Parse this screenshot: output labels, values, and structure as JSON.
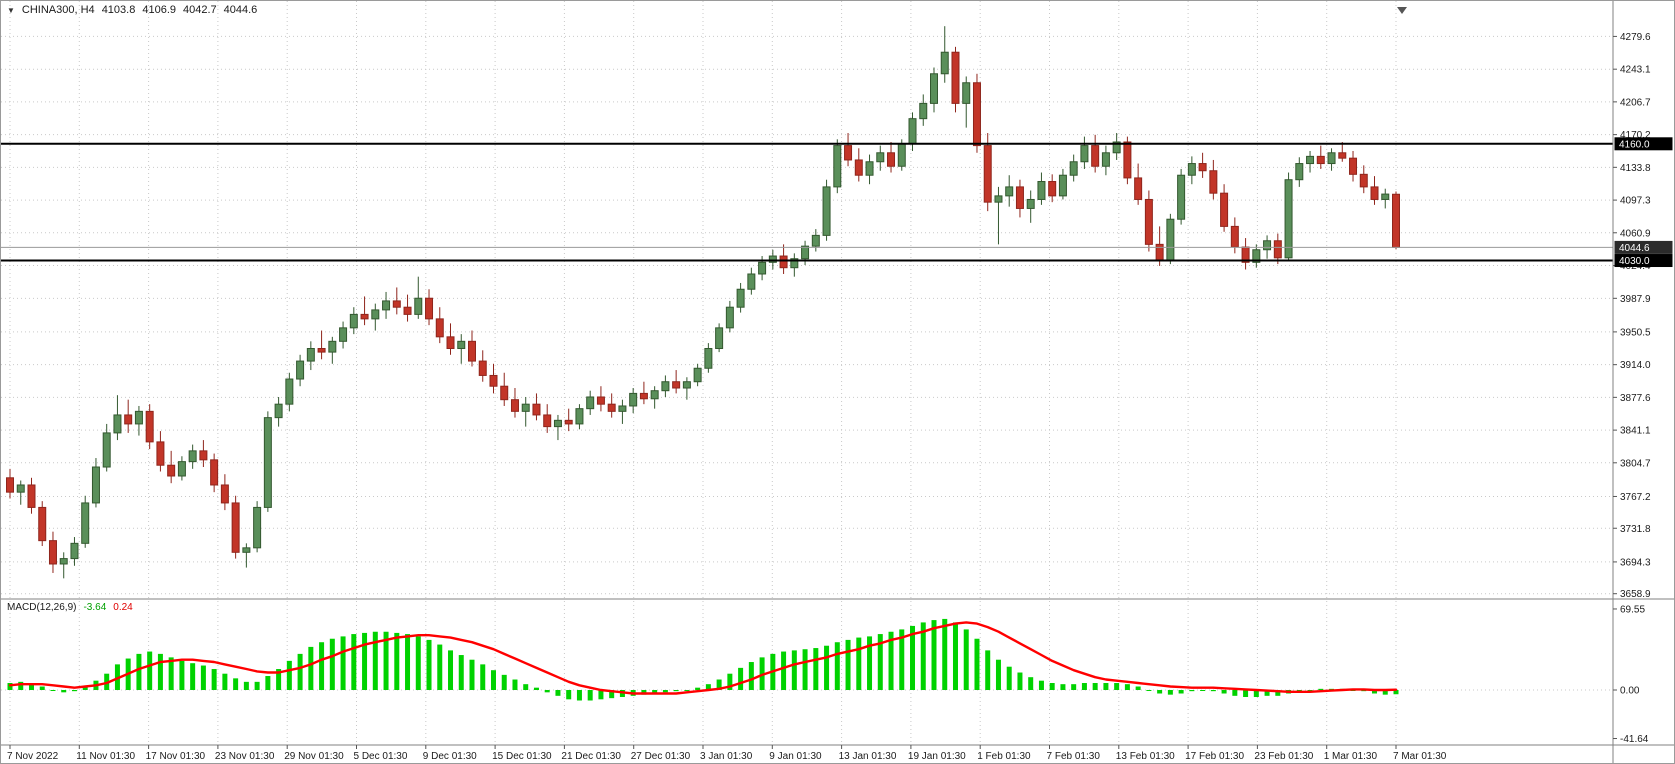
{
  "header": {
    "symbol_timeframe": "CHINA300, H4",
    "open": "4103.8",
    "high": "4106.9",
    "low": "4042.7",
    "close": "4044.6"
  },
  "colors": {
    "background": "#ffffff",
    "grid": "#c9c9c9",
    "text": "#1a1a1a",
    "bull_fill": "#5a8f5a",
    "bull_border": "#33582f",
    "bear_fill": "#c23528",
    "bear_border": "#8f251c",
    "hline": "#000000",
    "price_line": "#9a9a9a",
    "badge_bg": "#000000",
    "badge_text": "#ffffff",
    "macd_bar": "#00d200",
    "macd_signal": "#ff0000",
    "separator": "#808080"
  },
  "chart_data": {
    "type": "candlestick",
    "title": "CHINA300, H4",
    "legend_position": "top-left",
    "grid": true,
    "x_labels": [
      "7 Nov 2022",
      "11 Nov 01:30",
      "17 Nov 01:30",
      "23 Nov 01:30",
      "29 Nov 01:30",
      "5 Dec 01:30",
      "9 Dec 01:30",
      "15 Dec 01:30",
      "21 Dec 01:30",
      "27 Dec 01:30",
      "3 Jan 01:30",
      "9 Jan 01:30",
      "13 Jan 01:30",
      "19 Jan 01:30",
      "1 Feb 01:30",
      "7 Feb 01:30",
      "13 Feb 01:30",
      "17 Feb 01:30",
      "23 Feb 01:30",
      "1 Mar 01:30",
      "7 Mar 01:30"
    ],
    "price_ticks": [
      4279.6,
      4243.1,
      4206.7,
      4170.2,
      4133.8,
      4097.3,
      4060.9,
      4024.4,
      3987.9,
      3950.5,
      3914.0,
      3877.6,
      3841.1,
      3804.7,
      3767.2,
      3731.8,
      3694.3,
      3658.9
    ],
    "ylim": [
      3653.0,
      4299.0
    ],
    "hlines": [
      {
        "price": 4160.0,
        "label": "4160.0"
      },
      {
        "price": 4030.0,
        "label": "4030.0"
      }
    ],
    "current_price": {
      "price": 4044.6,
      "label": "4044.6"
    },
    "candles_ohlc": [
      [
        3788,
        3798,
        3765,
        3772
      ],
      [
        3772,
        3785,
        3758,
        3780
      ],
      [
        3780,
        3788,
        3748,
        3755
      ],
      [
        3755,
        3762,
        3712,
        3718
      ],
      [
        3718,
        3728,
        3682,
        3692
      ],
      [
        3692,
        3705,
        3676,
        3698
      ],
      [
        3698,
        3722,
        3690,
        3715
      ],
      [
        3715,
        3768,
        3710,
        3760
      ],
      [
        3760,
        3810,
        3755,
        3800
      ],
      [
        3800,
        3848,
        3795,
        3838
      ],
      [
        3838,
        3880,
        3830,
        3858
      ],
      [
        3858,
        3875,
        3838,
        3848
      ],
      [
        3848,
        3868,
        3835,
        3862
      ],
      [
        3862,
        3870,
        3820,
        3828
      ],
      [
        3828,
        3840,
        3795,
        3802
      ],
      [
        3802,
        3818,
        3782,
        3790
      ],
      [
        3790,
        3812,
        3785,
        3806
      ],
      [
        3806,
        3825,
        3798,
        3818
      ],
      [
        3818,
        3830,
        3800,
        3808
      ],
      [
        3808,
        3815,
        3772,
        3780
      ],
      [
        3780,
        3792,
        3752,
        3760
      ],
      [
        3760,
        3768,
        3698,
        3705
      ],
      [
        3705,
        3715,
        3688,
        3710
      ],
      [
        3710,
        3762,
        3705,
        3755
      ],
      [
        3755,
        3862,
        3750,
        3855
      ],
      [
        3855,
        3878,
        3845,
        3870
      ],
      [
        3870,
        3905,
        3862,
        3898
      ],
      [
        3898,
        3925,
        3890,
        3918
      ],
      [
        3918,
        3940,
        3908,
        3932
      ],
      [
        3932,
        3952,
        3920,
        3928
      ],
      [
        3928,
        3945,
        3915,
        3940
      ],
      [
        3940,
        3962,
        3932,
        3955
      ],
      [
        3955,
        3978,
        3948,
        3970
      ],
      [
        3970,
        3990,
        3958,
        3965
      ],
      [
        3965,
        3982,
        3952,
        3975
      ],
      [
        3975,
        3995,
        3965,
        3985
      ],
      [
        3985,
        4000,
        3970,
        3978
      ],
      [
        3978,
        3992,
        3962,
        3970
      ],
      [
        3970,
        4012,
        3965,
        3988
      ],
      [
        3988,
        3998,
        3958,
        3965
      ],
      [
        3965,
        3978,
        3938,
        3945
      ],
      [
        3945,
        3960,
        3925,
        3932
      ],
      [
        3932,
        3948,
        3915,
        3940
      ],
      [
        3940,
        3952,
        3912,
        3918
      ],
      [
        3918,
        3930,
        3895,
        3902
      ],
      [
        3902,
        3915,
        3882,
        3890
      ],
      [
        3890,
        3905,
        3868,
        3875
      ],
      [
        3875,
        3888,
        3855,
        3862
      ],
      [
        3862,
        3878,
        3845,
        3870
      ],
      [
        3870,
        3882,
        3852,
        3858
      ],
      [
        3858,
        3870,
        3838,
        3845
      ],
      [
        3845,
        3858,
        3830,
        3852
      ],
      [
        3852,
        3865,
        3840,
        3848
      ],
      [
        3848,
        3870,
        3842,
        3865
      ],
      [
        3865,
        3885,
        3858,
        3878
      ],
      [
        3878,
        3890,
        3862,
        3870
      ],
      [
        3870,
        3882,
        3855,
        3862
      ],
      [
        3862,
        3875,
        3848,
        3868
      ],
      [
        3868,
        3888,
        3860,
        3882
      ],
      [
        3882,
        3895,
        3870,
        3876
      ],
      [
        3876,
        3890,
        3865,
        3885
      ],
      [
        3885,
        3902,
        3878,
        3895
      ],
      [
        3895,
        3908,
        3882,
        3888
      ],
      [
        3888,
        3900,
        3875,
        3895
      ],
      [
        3895,
        3915,
        3890,
        3910
      ],
      [
        3910,
        3938,
        3905,
        3932
      ],
      [
        3932,
        3960,
        3928,
        3955
      ],
      [
        3955,
        3985,
        3950,
        3978
      ],
      [
        3978,
        4005,
        3972,
        3998
      ],
      [
        3998,
        4022,
        3992,
        4015
      ],
      [
        4015,
        4035,
        4008,
        4028
      ],
      [
        4028,
        4042,
        4020,
        4035
      ],
      [
        4035,
        4048,
        4015,
        4022
      ],
      [
        4022,
        4038,
        4012,
        4032
      ],
      [
        4032,
        4052,
        4025,
        4046
      ],
      [
        4046,
        4065,
        4040,
        4058
      ],
      [
        4058,
        4120,
        4052,
        4112
      ],
      [
        4112,
        4165,
        4105,
        4158
      ],
      [
        4158,
        4172,
        4135,
        4142
      ],
      [
        4142,
        4155,
        4118,
        4125
      ],
      [
        4125,
        4148,
        4115,
        4140
      ],
      [
        4140,
        4158,
        4130,
        4150
      ],
      [
        4150,
        4162,
        4128,
        4135
      ],
      [
        4135,
        4165,
        4130,
        4160
      ],
      [
        4160,
        4195,
        4152,
        4188
      ],
      [
        4188,
        4215,
        4180,
        4205
      ],
      [
        4205,
        4245,
        4195,
        4238
      ],
      [
        4238,
        4291,
        4228,
        4262
      ],
      [
        4262,
        4268,
        4195,
        4205
      ],
      [
        4205,
        4235,
        4178,
        4228
      ],
      [
        4228,
        4238,
        4150,
        4158
      ],
      [
        4158,
        4172,
        4085,
        4095
      ],
      [
        4095,
        4112,
        4048,
        4102
      ],
      [
        4102,
        4125,
        4090,
        4112
      ],
      [
        4112,
        4120,
        4078,
        4088
      ],
      [
        4088,
        4108,
        4072,
        4098
      ],
      [
        4098,
        4128,
        4092,
        4118
      ],
      [
        4118,
        4126,
        4095,
        4102
      ],
      [
        4102,
        4132,
        4098,
        4125
      ],
      [
        4125,
        4148,
        4118,
        4140
      ],
      [
        4140,
        4168,
        4132,
        4158
      ],
      [
        4158,
        4170,
        4128,
        4135
      ],
      [
        4135,
        4158,
        4125,
        4150
      ],
      [
        4150,
        4172,
        4142,
        4162
      ],
      [
        4162,
        4168,
        4115,
        4122
      ],
      [
        4122,
        4138,
        4092,
        4098
      ],
      [
        4098,
        4108,
        4040,
        4048
      ],
      [
        4048,
        4068,
        4024,
        4030
      ],
      [
        4030,
        4082,
        4026,
        4076
      ],
      [
        4076,
        4132,
        4070,
        4125
      ],
      [
        4125,
        4146,
        4115,
        4138
      ],
      [
        4138,
        4150,
        4122,
        4130
      ],
      [
        4130,
        4142,
        4098,
        4105
      ],
      [
        4105,
        4115,
        4062,
        4068
      ],
      [
        4068,
        4078,
        4038,
        4045
      ],
      [
        4045,
        4055,
        4020,
        4028
      ],
      [
        4028,
        4048,
        4022,
        4042
      ],
      [
        4042,
        4058,
        4032,
        4052
      ],
      [
        4052,
        4060,
        4026,
        4033
      ],
      [
        4033,
        4128,
        4030,
        4120
      ],
      [
        4120,
        4145,
        4112,
        4138
      ],
      [
        4138,
        4152,
        4128,
        4146
      ],
      [
        4146,
        4158,
        4132,
        4138
      ],
      [
        4138,
        4155,
        4130,
        4150
      ],
      [
        4150,
        4162,
        4140,
        4144
      ],
      [
        4144,
        4152,
        4118,
        4126
      ],
      [
        4126,
        4136,
        4105,
        4112
      ],
      [
        4112,
        4124,
        4092,
        4098
      ],
      [
        4098,
        4110,
        4088,
        4104
      ],
      [
        4103.8,
        4106.9,
        4042.7,
        4044.6
      ]
    ],
    "macd": {
      "type": "bar+line",
      "label": "MACD(12,26,9)",
      "macd_value": "-3.64",
      "signal_value": "0.24",
      "ylim": [
        -47.2,
        78.1
      ],
      "ticks": [
        {
          "v": 69.55,
          "label": "69.55"
        },
        {
          "v": 0,
          "label": "0.00"
        },
        {
          "v": -41.64,
          "label": "-41.64"
        }
      ],
      "histogram": [
        6,
        7,
        6,
        3,
        0,
        -2,
        -1,
        3,
        8,
        14,
        22,
        27,
        31,
        33,
        31,
        28,
        25,
        23,
        21,
        18,
        14,
        10,
        7,
        7,
        12,
        18,
        25,
        31,
        37,
        41,
        44,
        46,
        48,
        49,
        50,
        50,
        49,
        48,
        46,
        43,
        39,
        34,
        30,
        26,
        22,
        17,
        13,
        9,
        5,
        2,
        -2,
        -5,
        -8,
        -9,
        -9,
        -8,
        -7,
        -6,
        -5,
        -4,
        -3,
        -2,
        -1,
        0,
        2,
        5,
        9,
        14,
        19,
        24,
        28,
        31,
        33,
        34,
        35,
        36,
        38,
        41,
        43,
        45,
        46,
        48,
        50,
        52,
        55,
        58,
        60,
        61,
        58,
        52,
        44,
        34,
        26,
        20,
        15,
        11,
        8,
        6,
        5,
        5,
        6,
        6,
        6,
        6,
        5,
        3,
        0,
        -3,
        -4,
        -3,
        -1,
        0,
        -1,
        -3,
        -5,
        -6,
        -6,
        -5,
        -5,
        -3,
        -1,
        0,
        1,
        1,
        1,
        0,
        -1,
        -3,
        -4,
        -3.64
      ],
      "signal": [
        4,
        5,
        5,
        5,
        4,
        3,
        2,
        3,
        4,
        6,
        10,
        14,
        18,
        21,
        24,
        25,
        26,
        26,
        25,
        24,
        22,
        20,
        18,
        16,
        15,
        15,
        17,
        19,
        22,
        26,
        29,
        33,
        36,
        39,
        41,
        43,
        45,
        46,
        47,
        47,
        46,
        45,
        43,
        41,
        38,
        35,
        31,
        27,
        23,
        19,
        15,
        11,
        7,
        4,
        2,
        0,
        -1,
        -2,
        -3,
        -3,
        -3,
        -3,
        -3,
        -2,
        -1,
        0,
        1,
        3,
        6,
        9,
        13,
        16,
        19,
        22,
        24,
        26,
        28,
        31,
        33,
        35,
        38,
        40,
        43,
        45,
        48,
        50,
        53,
        55,
        57,
        58,
        57,
        54,
        50,
        45,
        40,
        35,
        30,
        25,
        21,
        17,
        14,
        11,
        9,
        8,
        7,
        6,
        5,
        4,
        3,
        2.5,
        2,
        2,
        2,
        1.5,
        1,
        0.5,
        0,
        -0.5,
        -1,
        -1.5,
        -1.5,
        -1.5,
        -1,
        -0.5,
        0,
        0.5,
        0.5,
        0,
        0,
        0.24
      ]
    }
  }
}
